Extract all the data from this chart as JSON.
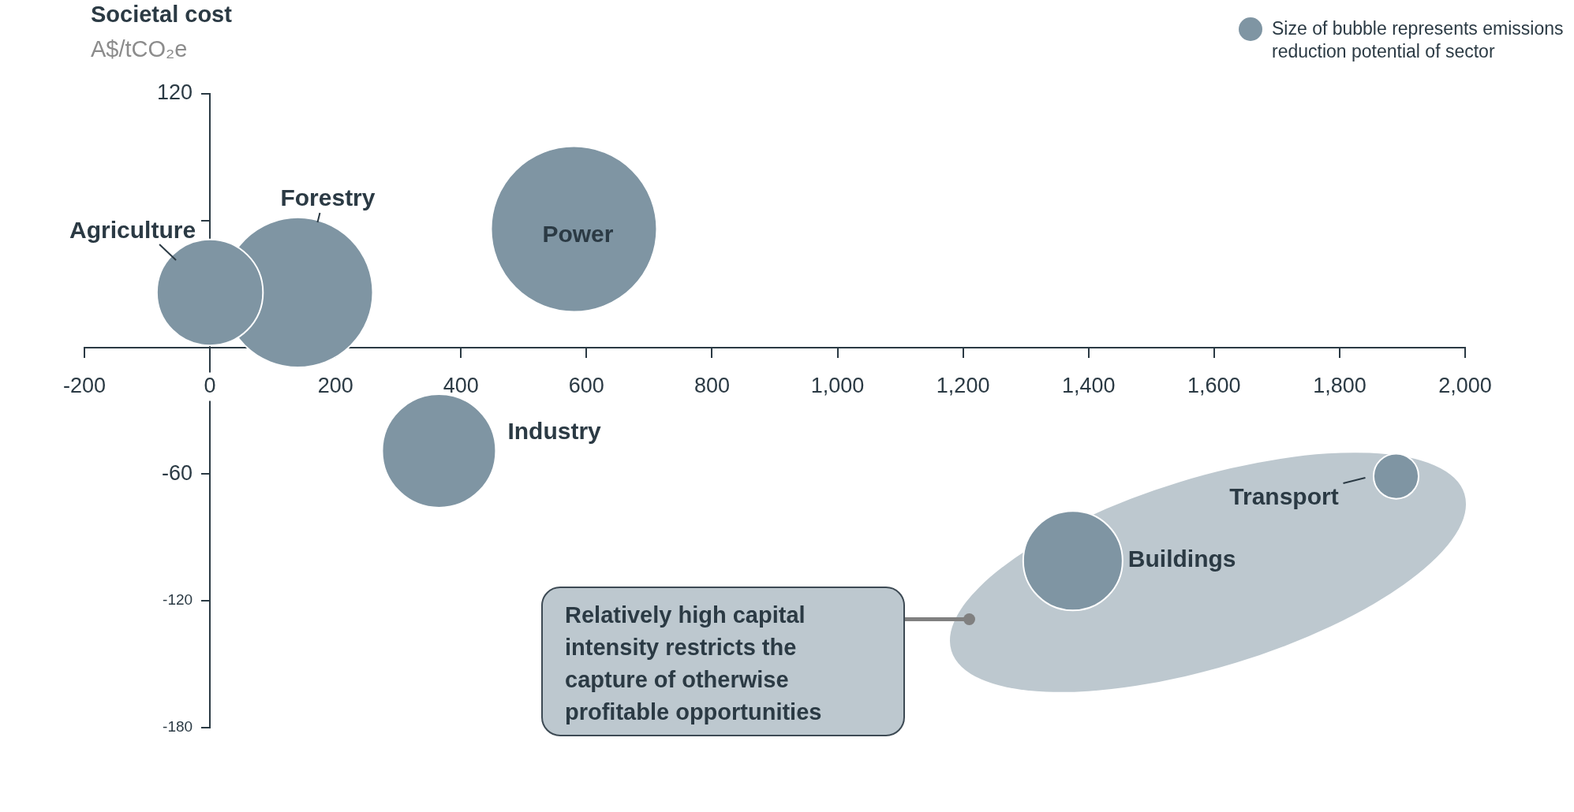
{
  "chart_data": {
    "type": "bubble",
    "ylabel": "Societal cost\nA$/tCO₂e",
    "xlim": [
      -200,
      2000
    ],
    "xticks": [
      -200,
      0,
      200,
      400,
      600,
      800,
      {
        "value": 1000,
        "label": "1,000"
      },
      {
        "value": 1200,
        "label": "1,200"
      },
      {
        "value": 1400,
        "label": "1,400"
      },
      {
        "value": 1600,
        "label": "1,600"
      },
      {
        "value": 1800,
        "label": "1,800"
      },
      {
        "value": 2000,
        "label": "2,000"
      }
    ],
    "ylim": [
      -180,
      120
    ],
    "yticks": [
      120,
      {
        "value": 60,
        "label": null
      },
      {
        "value": 0,
        "label": null
      },
      -60,
      -120,
      -180
    ],
    "grid": false,
    "legend": false,
    "series": [
      {
        "name": "Agriculture",
        "color": "#7f95a3",
        "x": [
          0
        ],
        "values": [
          26
        ],
        "sizes": [
          0.41
        ]
      },
      {
        "name": "Forestry",
        "color": "#7f95a3",
        "x": [
          140
        ],
        "values": [
          26
        ],
        "sizes": [
          0.82
        ]
      },
      {
        "name": "Power",
        "color": "#7f95a3",
        "x": [
          580
        ],
        "values": [
          56
        ],
        "sizes": [
          1
        ]
      },
      {
        "name": "Industry",
        "color": "#7f95a3",
        "x": [
          365
        ],
        "values": [
          -49
        ],
        "sizes": [
          0.47
        ]
      },
      {
        "name": "Buildings",
        "color": "#7f95a3",
        "x": [
          1375
        ],
        "values": [
          -101
        ],
        "sizes": [
          0.36
        ]
      },
      {
        "name": "Transport",
        "color": "#7f95a3",
        "x": [
          1890
        ],
        "values": [
          -61
        ],
        "sizes": [
          0.074
        ]
      }
    ],
    "annotations": [
      "Size of bubble represents emissions reduction potential of sector",
      "Relatively high capital intensity restricts the capture of otherwise profitable opportunities"
    ]
  }
}
